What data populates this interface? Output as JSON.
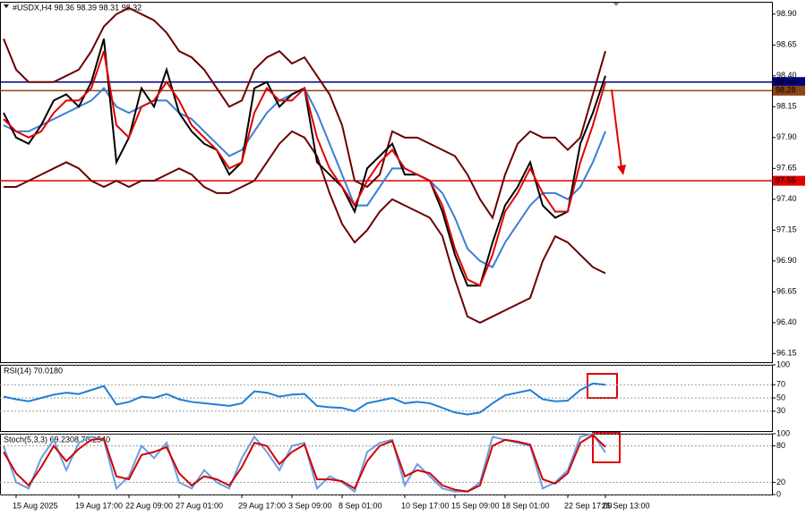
{
  "chart_data": [
    {
      "type": "line",
      "title": "#USDX,H4 98.36 98.39 98.31 98.32",
      "ylim": [
        96.08,
        99.0
      ],
      "yticks": [
        96.15,
        {
          "value": 96.4,
          "label": "96.40"
        },
        96.65,
        {
          "value": 96.9,
          "label": "96.90"
        },
        97.15,
        {
          "value": 97.4,
          "label": "97.40"
        },
        97.65,
        {
          "value": 97.9,
          "label": "97.90"
        },
        98.15,
        {
          "value": 98.4,
          "label": "98.40"
        },
        98.65,
        {
          "value": 98.9,
          "label": "98.90"
        }
      ],
      "grid": false,
      "series": [
        {
          "color": "#6b0000",
          "values": [
            98.7,
            98.45,
            98.35,
            98.35,
            98.35,
            98.4,
            98.45,
            98.6,
            98.8,
            98.9,
            98.95,
            98.9,
            98.85,
            98.75,
            98.6,
            98.55,
            98.45,
            98.3,
            98.15,
            98.2,
            98.45,
            98.55,
            98.6,
            98.5,
            98.55,
            98.4,
            98.25,
            98.0,
            97.55,
            97.5,
            97.6,
            97.95,
            97.9,
            97.9,
            97.85,
            97.8,
            97.75,
            97.6,
            97.4,
            97.25,
            97.6,
            97.85,
            97.95,
            97.9,
            97.9,
            97.8,
            97.9,
            98.25,
            98.6
          ]
        },
        {
          "color": "#6b0000",
          "values": [
            97.5,
            97.5,
            97.55,
            97.6,
            97.65,
            97.7,
            97.65,
            97.55,
            97.5,
            97.55,
            97.5,
            97.55,
            97.55,
            97.6,
            97.65,
            97.6,
            97.5,
            97.45,
            97.45,
            97.5,
            97.55,
            97.7,
            97.85,
            97.95,
            97.9,
            97.75,
            97.45,
            97.2,
            97.05,
            97.15,
            97.3,
            97.4,
            97.35,
            97.3,
            97.25,
            97.1,
            96.75,
            96.45,
            96.4,
            96.45,
            96.5,
            96.55,
            96.6,
            96.9,
            97.1,
            97.05,
            96.95,
            96.85,
            96.8
          ]
        },
        {
          "color": "#3a7fd5",
          "values": [
            98.0,
            97.95,
            97.95,
            98.0,
            98.05,
            98.1,
            98.15,
            98.2,
            98.3,
            98.15,
            98.1,
            98.15,
            98.2,
            98.2,
            98.1,
            98.05,
            97.95,
            97.85,
            97.75,
            97.8,
            97.95,
            98.1,
            98.2,
            98.25,
            98.3,
            98.1,
            97.85,
            97.6,
            97.35,
            97.35,
            97.5,
            97.65,
            97.65,
            97.6,
            97.55,
            97.45,
            97.25,
            97.0,
            96.9,
            96.85,
            97.05,
            97.2,
            97.35,
            97.45,
            97.45,
            97.4,
            97.5,
            97.7,
            97.95
          ]
        },
        {
          "color": "#000000",
          "values": [
            98.1,
            97.9,
            97.85,
            98.0,
            98.2,
            98.25,
            98.15,
            98.35,
            98.7,
            97.7,
            97.9,
            98.3,
            98.15,
            98.45,
            98.1,
            97.95,
            97.85,
            97.8,
            97.6,
            97.7,
            98.3,
            98.35,
            98.15,
            98.25,
            98.3,
            97.7,
            97.6,
            97.5,
            97.3,
            97.65,
            97.75,
            97.85,
            97.6,
            97.6,
            97.55,
            97.3,
            96.95,
            96.7,
            96.7,
            97.05,
            97.35,
            97.5,
            97.7,
            97.35,
            97.25,
            97.3,
            97.85,
            98.1,
            98.4
          ]
        },
        {
          "color": "#e00000",
          "values": [
            98.05,
            97.95,
            97.9,
            97.95,
            98.1,
            98.2,
            98.2,
            98.3,
            98.6,
            98.0,
            97.9,
            98.15,
            98.2,
            98.35,
            98.2,
            98.0,
            97.9,
            97.8,
            97.65,
            97.7,
            98.1,
            98.3,
            98.2,
            98.2,
            98.3,
            97.9,
            97.65,
            97.5,
            97.35,
            97.55,
            97.7,
            97.8,
            97.65,
            97.6,
            97.55,
            97.35,
            97.0,
            96.75,
            96.7,
            96.95,
            97.3,
            97.45,
            97.65,
            97.45,
            97.3,
            97.3,
            97.7,
            98.0,
            98.35
          ]
        }
      ],
      "hlines": [
        {
          "value": 98.35,
          "color": "#000080"
        },
        {
          "value": 98.28,
          "color": "#8b4513"
        },
        {
          "value": 97.55,
          "color": "#e00000"
        }
      ]
    },
    {
      "type": "line",
      "title": "RSI(14) 70.0180",
      "ylim": [
        0,
        100
      ],
      "yticks": [
        30,
        50,
        70,
        100
      ],
      "grid": true,
      "series": [
        {
          "color": "#1e7fd8",
          "values": [
            52,
            48,
            45,
            50,
            55,
            58,
            56,
            62,
            68,
            40,
            44,
            52,
            50,
            56,
            48,
            44,
            42,
            40,
            38,
            42,
            60,
            58,
            52,
            55,
            56,
            38,
            36,
            35,
            30,
            42,
            46,
            50,
            42,
            44,
            42,
            35,
            28,
            25,
            28,
            42,
            54,
            58,
            62,
            48,
            45,
            46,
            62,
            72,
            70
          ]
        }
      ]
    },
    {
      "type": "line",
      "title": "Stoch(5,3,3) 69.2308 78.2540",
      "ylim": [
        0,
        100
      ],
      "yticks": [
        0,
        20,
        80,
        100
      ],
      "grid": true,
      "categories": [
        null,
        "15 Aug 2025",
        null,
        null,
        null,
        null,
        "19 Aug 17:00",
        null,
        null,
        null,
        "22 Aug 09:00",
        null,
        null,
        null,
        "27 Aug 01:00",
        null,
        null,
        null,
        null,
        "29 Aug 17:00",
        null,
        null,
        null,
        "3 Sep 09:00",
        null,
        null,
        null,
        "8 Sep 01:00",
        null,
        null,
        null,
        null,
        "10 Sep 17:00",
        null,
        null,
        null,
        "15 Sep 09:00",
        null,
        null,
        null,
        "18 Sep 01:00",
        null,
        null,
        null,
        null,
        "22 Sep 17:00",
        null,
        null,
        "25 Sep 13:00"
      ],
      "series": [
        {
          "color": "#6a9ee0",
          "values": [
            80,
            20,
            10,
            60,
            90,
            40,
            85,
            95,
            90,
            10,
            30,
            80,
            60,
            85,
            20,
            10,
            40,
            20,
            10,
            60,
            95,
            70,
            40,
            80,
            85,
            10,
            30,
            20,
            5,
            70,
            85,
            90,
            15,
            50,
            30,
            10,
            5,
            5,
            20,
            95,
            90,
            85,
            80,
            10,
            20,
            40,
            95,
            100,
            69.2308
          ]
        },
        {
          "color": "#d00000",
          "values": [
            70,
            35,
            15,
            45,
            80,
            55,
            75,
            90,
            92,
            30,
            25,
            65,
            70,
            78,
            35,
            15,
            30,
            25,
            15,
            45,
            85,
            80,
            50,
            70,
            82,
            25,
            25,
            22,
            10,
            55,
            80,
            88,
            30,
            40,
            35,
            15,
            8,
            5,
            15,
            80,
            90,
            87,
            82,
            25,
            18,
            35,
            85,
            98,
            78.254
          ]
        }
      ]
    }
  ]
}
